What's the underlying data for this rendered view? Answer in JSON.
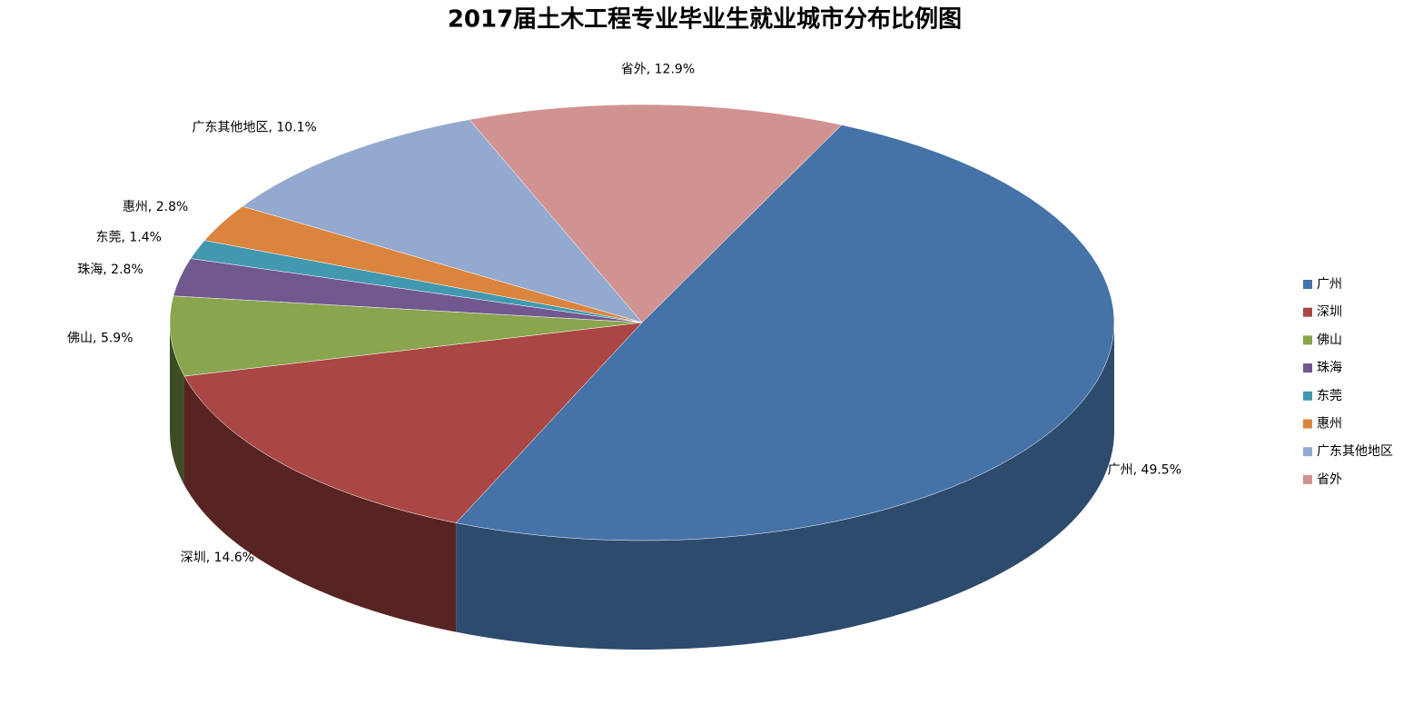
{
  "chart_data": {
    "type": "pie3d",
    "title": "2017届土木工程专业毕业生就业城市分布比例图",
    "categories": [
      "广州",
      "深圳",
      "佛山",
      "珠海",
      "东莞",
      "惠州",
      "广东其他地区",
      "省外"
    ],
    "values": [
      49.5,
      14.6,
      5.9,
      2.8,
      1.4,
      2.8,
      10.1,
      12.9
    ],
    "value_labels": [
      "广州, 49.5%",
      "深圳, 14.6%",
      "佛山, 5.9%",
      "珠海, 2.8%",
      "东莞, 1.4%",
      "惠州, 2.8%",
      "广东其他地区, 10.1%",
      "省外, 12.9%"
    ],
    "colors": [
      "#4572a7",
      "#aa4643",
      "#89a54e",
      "#71588f",
      "#4198af",
      "#db843d",
      "#93a9cf",
      "#d19392"
    ],
    "legend": "right"
  }
}
